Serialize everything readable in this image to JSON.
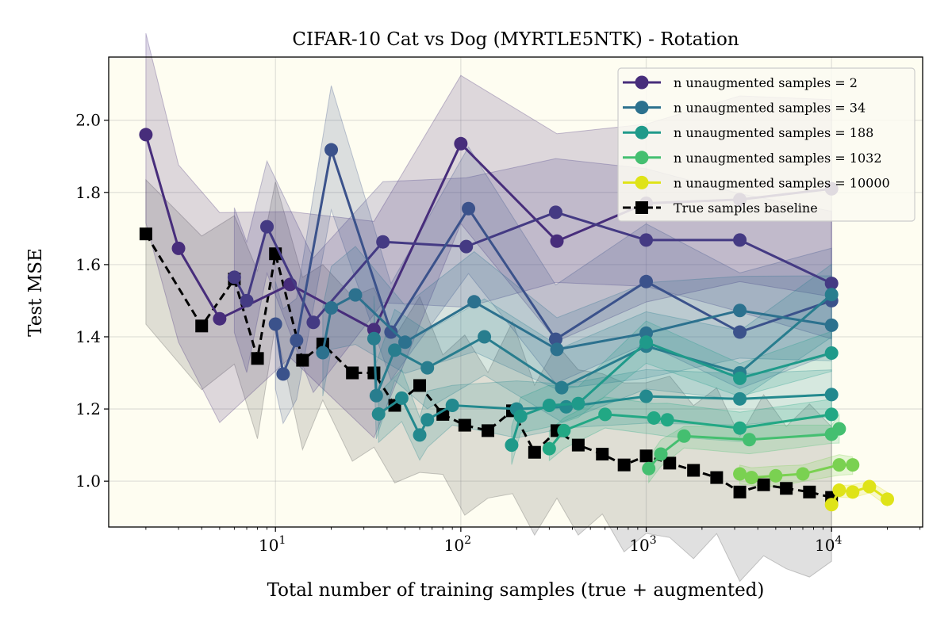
{
  "chart_data": {
    "type": "line",
    "title": "CIFAR-10 Cat vs Dog (MYRTLE5NTK) - Rotation",
    "xlabel": "Total number of training samples (true + augmented)",
    "ylabel": "Test MSE",
    "xscale": "log",
    "xlim": [
      1.26,
      31000
    ],
    "ylim": [
      0.873,
      2.175
    ],
    "x_ticks": [
      {
        "value": 10,
        "base": "10",
        "exp": "1"
      },
      {
        "value": 100,
        "base": "10",
        "exp": "2"
      },
      {
        "value": 1000,
        "base": "10",
        "exp": "3"
      },
      {
        "value": 10000,
        "base": "10",
        "exp": "4"
      }
    ],
    "y_ticks": [
      {
        "value": 1.0,
        "label": "1.0"
      },
      {
        "value": 1.2,
        "label": "1.2"
      },
      {
        "value": 1.4,
        "label": "1.4"
      },
      {
        "value": 1.6,
        "label": "1.6"
      },
      {
        "value": 1.8,
        "label": "1.8"
      },
      {
        "value": 2.0,
        "label": "2.0"
      }
    ],
    "grid": true,
    "legend_position": "top-right",
    "background_color": "#fefdf1",
    "series": [
      {
        "name": "n unaugmented samples = 2",
        "color": "#472d7b",
        "band": 0.3,
        "points": [
          [
            2,
            1.96
          ],
          [
            3,
            1.645
          ],
          [
            5,
            1.45
          ],
          [
            12,
            1.545
          ],
          [
            34,
            1.42
          ],
          [
            100,
            1.935
          ],
          [
            330,
            1.665
          ],
          [
            1000,
            1.77
          ],
          [
            3200,
            1.78
          ],
          [
            10000,
            1.81
          ]
        ]
      },
      {
        "color": "#443a83",
        "band": 0.2,
        "points": [
          [
            6,
            1.565
          ],
          [
            7,
            1.5
          ],
          [
            9,
            1.705
          ],
          [
            16,
            1.44
          ],
          [
            38,
            1.663
          ],
          [
            107,
            1.65
          ],
          [
            325,
            1.745
          ],
          [
            1000,
            1.668
          ],
          [
            3200,
            1.668
          ],
          [
            10000,
            1.548
          ]
        ]
      },
      {
        "color": "#3b528b",
        "band": 0.18,
        "points": [
          [
            10,
            1.435
          ],
          [
            11,
            1.297
          ],
          [
            13,
            1.39
          ],
          [
            20,
            1.918
          ],
          [
            42,
            1.413
          ],
          [
            110,
            1.755
          ],
          [
            325,
            1.393
          ],
          [
            1000,
            1.553
          ],
          [
            3200,
            1.413
          ],
          [
            10000,
            1.5
          ]
        ]
      },
      {
        "name": "n unaugmented samples = 34",
        "color": "#2c718e",
        "band": 0.14,
        "points": [
          [
            18,
            1.356
          ],
          [
            20,
            1.48
          ],
          [
            27,
            1.516
          ],
          [
            50,
            1.385
          ],
          [
            118,
            1.497
          ],
          [
            330,
            1.365
          ],
          [
            1000,
            1.41
          ],
          [
            3200,
            1.473
          ],
          [
            10000,
            1.432
          ]
        ]
      },
      {
        "color": "#287d8e",
        "band": 0.12,
        "points": [
          [
            34,
            1.395
          ],
          [
            35,
            1.237
          ],
          [
            44,
            1.363
          ],
          [
            66,
            1.314
          ],
          [
            134,
            1.4
          ],
          [
            350,
            1.259
          ],
          [
            1000,
            1.374
          ],
          [
            3200,
            1.3
          ],
          [
            10000,
            1.517
          ]
        ]
      },
      {
        "color": "#23898e",
        "band": 0.08,
        "points": [
          [
            36,
            1.186
          ],
          [
            48,
            1.23
          ],
          [
            60,
            1.128
          ],
          [
            66,
            1.17
          ],
          [
            90,
            1.21
          ],
          [
            200,
            1.2
          ],
          [
            370,
            1.206
          ],
          [
            1000,
            1.235
          ],
          [
            3200,
            1.228
          ],
          [
            10000,
            1.24
          ]
        ]
      },
      {
        "name": "n unaugmented samples = 188",
        "color": "#1f9a8a",
        "band": 0.06,
        "points": [
          [
            188,
            1.1
          ],
          [
            210,
            1.18
          ],
          [
            300,
            1.21
          ],
          [
            430,
            1.215
          ],
          [
            1000,
            1.385
          ],
          [
            3200,
            1.285
          ],
          [
            10000,
            1.355
          ]
        ]
      },
      {
        "color": "#22a884",
        "band": 0.05,
        "points": [
          [
            300,
            1.09
          ],
          [
            360,
            1.14
          ],
          [
            600,
            1.185
          ],
          [
            1100,
            1.175
          ],
          [
            1300,
            1.17
          ],
          [
            3200,
            1.147
          ],
          [
            10000,
            1.185
          ]
        ]
      },
      {
        "name": "n unaugmented samples = 1032",
        "color": "#44bf70",
        "band": 0.04,
        "points": [
          [
            1032,
            1.035
          ],
          [
            1200,
            1.075
          ],
          [
            1600,
            1.125
          ],
          [
            3600,
            1.115
          ],
          [
            10000,
            1.13
          ],
          [
            11000,
            1.145
          ]
        ]
      },
      {
        "color": "#7ad151",
        "band": 0.03,
        "points": [
          [
            3200,
            1.02
          ],
          [
            3700,
            1.01
          ],
          [
            5000,
            1.015
          ],
          [
            7000,
            1.02
          ],
          [
            11000,
            1.045
          ],
          [
            13000,
            1.045
          ]
        ]
      },
      {
        "name": "n unaugmented samples = 10000",
        "color": "#dfe318",
        "band": 0.02,
        "points": [
          [
            10000,
            0.935
          ],
          [
            11000,
            0.975
          ],
          [
            13000,
            0.97
          ],
          [
            16000,
            0.985
          ],
          [
            20000,
            0.95
          ]
        ]
      }
    ],
    "baseline": {
      "name": "True samples baseline",
      "color": "#000000",
      "band": 0.25,
      "points": [
        [
          2,
          1.685
        ],
        [
          4,
          1.43
        ],
        [
          6,
          1.56
        ],
        [
          8,
          1.34
        ],
        [
          10,
          1.63
        ],
        [
          14,
          1.335
        ],
        [
          18,
          1.38
        ],
        [
          26,
          1.3
        ],
        [
          34,
          1.3
        ],
        [
          44,
          1.21
        ],
        [
          60,
          1.265
        ],
        [
          80,
          1.185
        ],
        [
          105,
          1.155
        ],
        [
          140,
          1.14
        ],
        [
          190,
          1.195
        ],
        [
          250,
          1.08
        ],
        [
          330,
          1.14
        ],
        [
          430,
          1.1
        ],
        [
          580,
          1.075
        ],
        [
          760,
          1.045
        ],
        [
          1000,
          1.07
        ],
        [
          1340,
          1.05
        ],
        [
          1800,
          1.03
        ],
        [
          2400,
          1.01
        ],
        [
          3200,
          0.97
        ],
        [
          4300,
          0.99
        ],
        [
          5700,
          0.98
        ],
        [
          7600,
          0.97
        ],
        [
          10000,
          0.955
        ]
      ]
    }
  }
}
